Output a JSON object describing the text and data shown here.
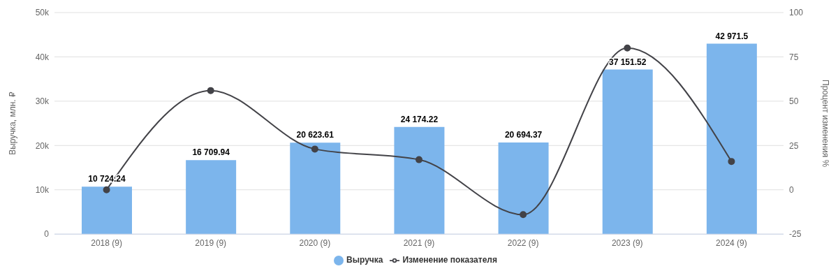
{
  "chart_data": {
    "type": "bar",
    "ylabel": "Выручка, млн. ₽",
    "y2label": "Процент изменения %",
    "categories": [
      "2018 (9)",
      "2019 (9)",
      "2020 (9)",
      "2021 (9)",
      "2022 (9)",
      "2023 (9)",
      "2024 (9)"
    ],
    "series": [
      {
        "name": "Выручка",
        "color": "#7cb5ec",
        "values": [
          10724.24,
          16709.94,
          20623.61,
          24174.22,
          20694.37,
          37151.52,
          42971.5
        ],
        "value_labels": [
          "10 724.24",
          "16 709.94",
          "20 623.61",
          "24 174.22",
          "20 694.37",
          "37 151.52",
          "42 971.5"
        ]
      },
      {
        "name": "Изменение показателя",
        "type": "line",
        "axis": "y2",
        "color": "#434348",
        "marker": "circle",
        "values": [
          0,
          56,
          23,
          17,
          -14,
          80,
          16
        ]
      }
    ],
    "ylim": [
      0,
      50000
    ],
    "yticks": [
      0,
      {
        "value": 10000,
        "label": "10k"
      },
      {
        "value": 20000,
        "label": "20k"
      },
      {
        "value": 30000,
        "label": "30k"
      },
      {
        "value": 40000,
        "label": "40k"
      },
      {
        "value": 50000,
        "label": "50k"
      }
    ],
    "y2lim": [
      -25,
      100
    ],
    "y2ticks": [
      -25,
      0,
      25,
      50,
      75,
      100
    ],
    "grid": "y",
    "legend": "bottom"
  }
}
